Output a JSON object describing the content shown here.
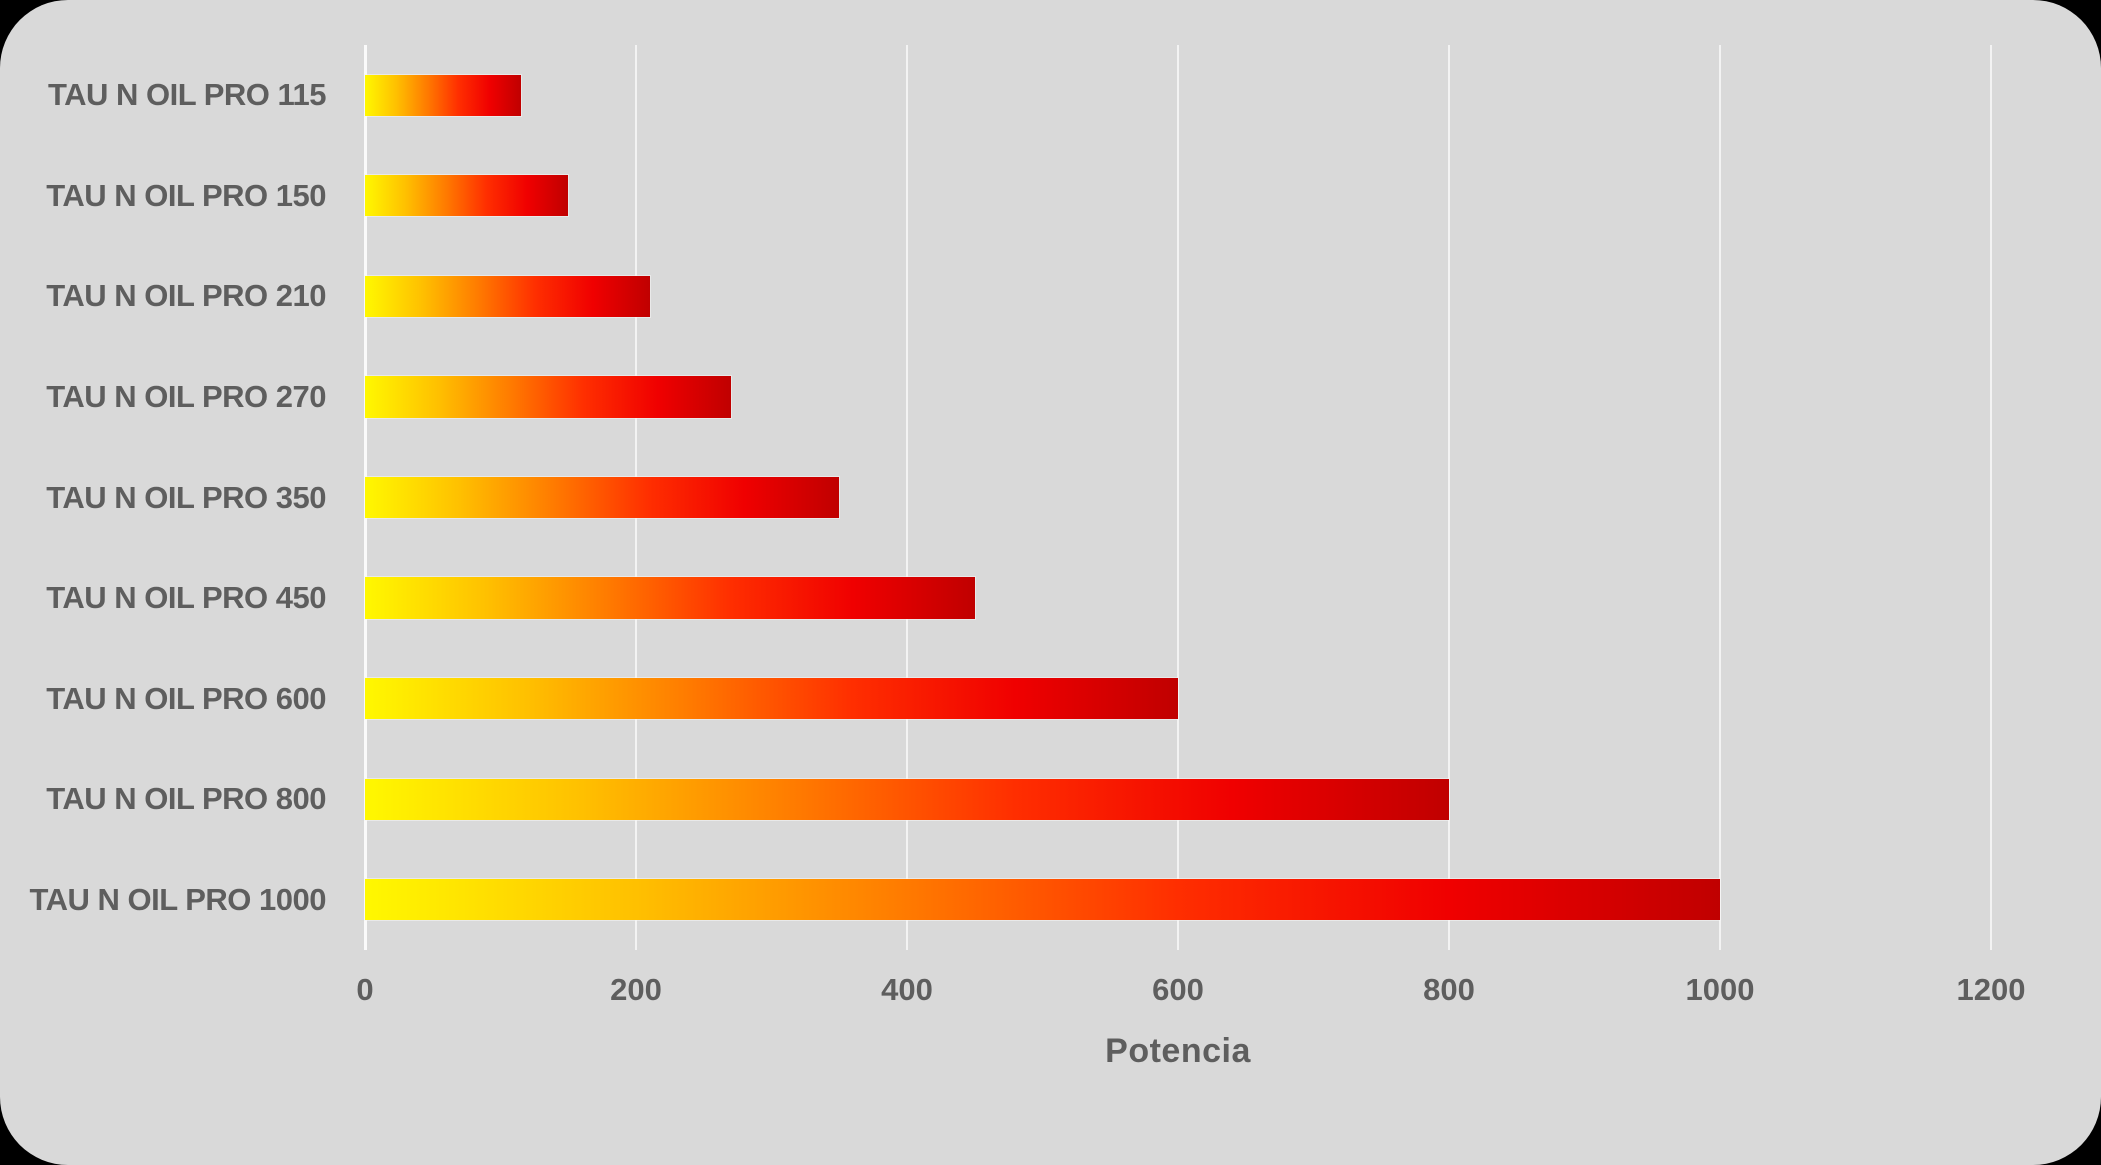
{
  "chart_data": {
    "type": "bar",
    "orientation": "horizontal",
    "title": "",
    "xlabel": "Potencia",
    "ylabel": "",
    "categories": [
      "TAU N OIL PRO 115",
      "TAU N OIL PRO 150",
      "TAU N OIL PRO 210",
      "TAU N OIL PRO 270",
      "TAU N OIL PRO 350",
      "TAU N OIL PRO 450",
      "TAU N OIL PRO 600",
      "TAU N OIL PRO 800",
      "TAU N OIL PRO 1000"
    ],
    "values": [
      115,
      150,
      210,
      270,
      350,
      450,
      600,
      800,
      1000
    ],
    "xlim": [
      0,
      1200
    ],
    "xticks": [
      0,
      200,
      400,
      600,
      800,
      1000,
      1200
    ],
    "grid": true,
    "legend_position": "none",
    "colors": {
      "background": "#D9D9D9",
      "gridline": "#F3F3F3",
      "text": "#5E5E5E",
      "bar_gradient": [
        "#FFF800",
        "#FFC000",
        "#FF7A00",
        "#FF2E00",
        "#F00000",
        "#C00000"
      ]
    }
  }
}
